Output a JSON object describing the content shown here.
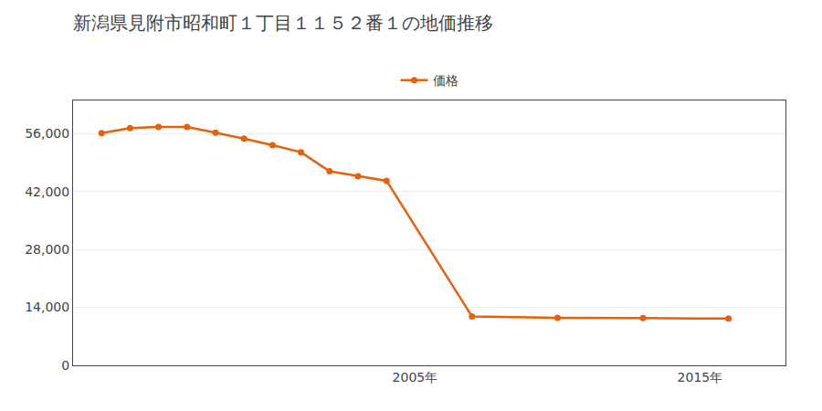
{
  "chart_data": {
    "type": "line",
    "title": "新潟県見附市昭和町１丁目１１５２番１の地価推移",
    "x": [
      1994,
      1995,
      1996,
      1997,
      1998,
      1999,
      2000,
      2001,
      2002,
      2003,
      2004,
      2007,
      2010,
      2013,
      2016
    ],
    "series": [
      {
        "name": "価格",
        "color": "#e8600a",
        "marker": "circle",
        "values": [
          56100,
          57300,
          57600,
          57600,
          56200,
          54800,
          53200,
          51500,
          46900,
          45700,
          44600,
          11800,
          11500,
          11400,
          11300
        ]
      }
    ],
    "xlim": [
      1993,
      2018
    ],
    "xticks": [
      {
        "value": 2005,
        "label": "2005年"
      },
      {
        "value": 2015,
        "label": "2015年"
      }
    ],
    "ylim": [
      0,
      64000
    ],
    "yticks": [
      0,
      {
        "value": 14000,
        "label": "14,000"
      },
      {
        "value": 28000,
        "label": "28,000"
      },
      {
        "value": 42000,
        "label": "42,000"
      },
      {
        "value": 56000,
        "label": "56,000"
      }
    ],
    "grid": "y",
    "legend": "top"
  }
}
